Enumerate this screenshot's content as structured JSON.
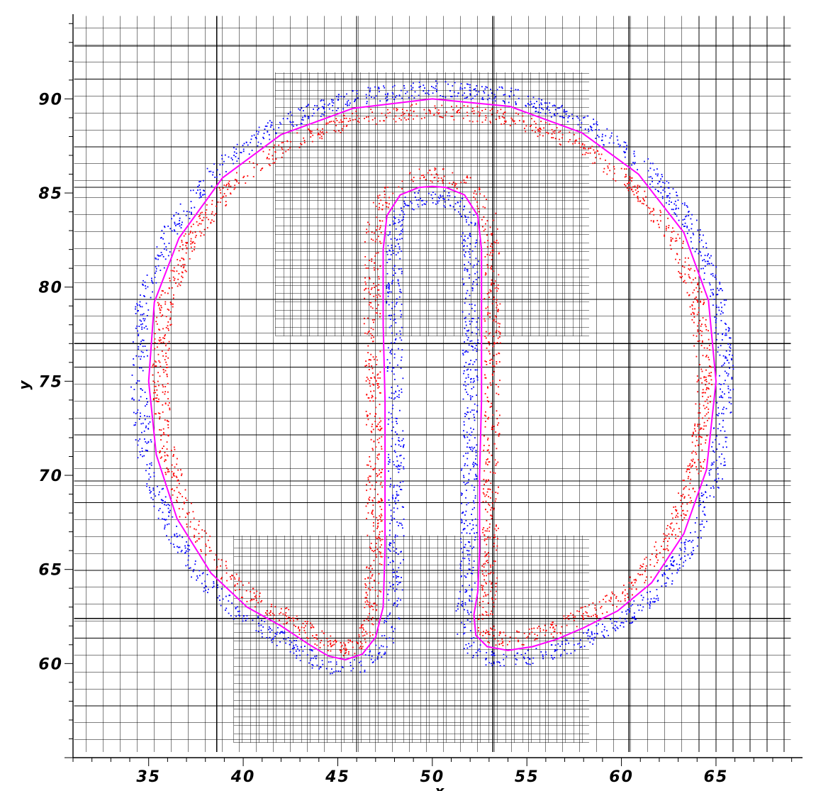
{
  "chart_data": {
    "type": "scatter",
    "title": "",
    "xlabel": "x",
    "ylabel": "y",
    "xlim": [
      31.0,
      69.5
    ],
    "ylim": [
      55.0,
      94.5
    ],
    "x_ticks": [
      35,
      40,
      45,
      50,
      55,
      60,
      65
    ],
    "y_ticks": [
      60,
      65,
      70,
      75,
      80,
      85,
      90
    ],
    "x_tick_labels": [
      "35",
      "40",
      "45",
      "50",
      "55",
      "60",
      "65"
    ],
    "y_tick_labels": [
      "60",
      "65",
      "70",
      "75",
      "80",
      "85",
      "90"
    ],
    "grid": true,
    "grid_levels": {
      "coarse_lines_x": [
        38.6,
        46.0,
        53.2,
        60.4
      ],
      "coarse_lines_y": [
        62.4,
        69.7,
        77.0,
        85.3,
        92.8
      ],
      "medium_spacing": 0.9,
      "fine_spacing": 0.45,
      "fine_regions": [
        {
          "x": [
            41.7,
            58.3
          ],
          "y": [
            77.4,
            91.4
          ]
        },
        {
          "x": [
            39.5,
            58.3
          ],
          "y": [
            55.8,
            66.8
          ]
        }
      ]
    },
    "interface_curve": {
      "name": "",
      "color": "#ff00ff",
      "points": [
        [
          50.0,
          90.0
        ],
        [
          45.8,
          89.5
        ],
        [
          42.0,
          88.1
        ],
        [
          38.9,
          85.8
        ],
        [
          36.6,
          82.6
        ],
        [
          35.3,
          79.2
        ],
        [
          35.0,
          75.0
        ],
        [
          35.4,
          71.1
        ],
        [
          36.5,
          67.7
        ],
        [
          38.3,
          64.8
        ],
        [
          40.2,
          63.0
        ],
        [
          42.0,
          62.0
        ],
        [
          43.5,
          61.0
        ],
        [
          44.5,
          60.4
        ],
        [
          45.4,
          60.2
        ],
        [
          46.3,
          60.5
        ],
        [
          47.0,
          61.4
        ],
        [
          47.4,
          63.0
        ],
        [
          47.5,
          66.0
        ],
        [
          47.5,
          70.0
        ],
        [
          47.5,
          74.0
        ],
        [
          47.4,
          78.0
        ],
        [
          47.4,
          82.0
        ],
        [
          47.6,
          83.8
        ],
        [
          48.3,
          84.9
        ],
        [
          49.3,
          85.3
        ],
        [
          50.0,
          85.35
        ],
        [
          50.7,
          85.3
        ],
        [
          51.7,
          84.9
        ],
        [
          52.4,
          83.8
        ],
        [
          52.6,
          82.0
        ],
        [
          52.6,
          78.0
        ],
        [
          52.6,
          74.0
        ],
        [
          52.5,
          70.0
        ],
        [
          52.5,
          66.0
        ],
        [
          52.4,
          63.8
        ],
        [
          52.2,
          62.6
        ],
        [
          52.3,
          61.5
        ],
        [
          52.9,
          60.9
        ],
        [
          54.0,
          60.7
        ],
        [
          55.3,
          60.9
        ],
        [
          56.6,
          61.3
        ],
        [
          58.0,
          61.9
        ],
        [
          59.8,
          62.8
        ],
        [
          61.6,
          64.3
        ],
        [
          63.3,
          66.9
        ],
        [
          64.5,
          70.3
        ],
        [
          65.0,
          75.0
        ],
        [
          64.6,
          79.3
        ],
        [
          63.3,
          82.9
        ],
        [
          60.9,
          86.0
        ],
        [
          57.9,
          88.2
        ],
        [
          54.1,
          89.6
        ],
        [
          50.0,
          90.0
        ]
      ]
    },
    "series": [
      {
        "name": "",
        "color": "#0000ff",
        "side": "outer",
        "offset_min": 0.15,
        "offset_max": 1.0,
        "count": 2400
      },
      {
        "name": "",
        "color": "#ff0000",
        "side": "inner",
        "offset_min": 0.15,
        "offset_max": 1.0,
        "count": 2400
      }
    ]
  }
}
